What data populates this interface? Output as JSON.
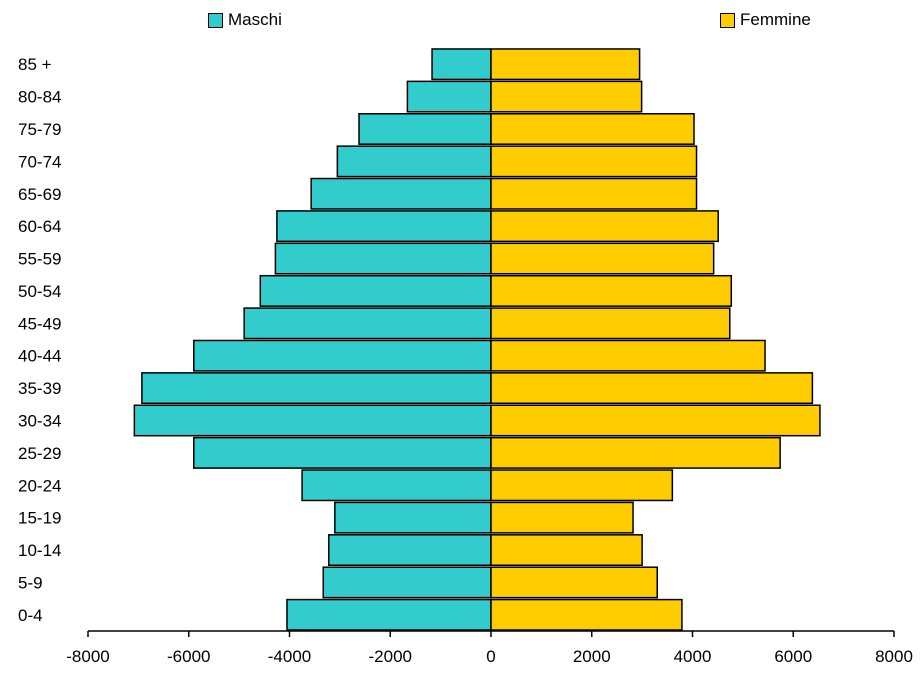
{
  "chart_data": {
    "type": "bar",
    "orientation": "horizontal",
    "categories": [
      "0-4",
      "5-9",
      "10-14",
      "15-19",
      "20-24",
      "25-29",
      "30-34",
      "35-39",
      "40-44",
      "45-49",
      "50-54",
      "55-59",
      "60-64",
      "65-69",
      "70-74",
      "75-79",
      "80-84",
      "85 +"
    ],
    "series": [
      {
        "name": "Maschi",
        "color": "#33cccc",
        "values": [
          -4050,
          -3330,
          -3220,
          -3100,
          -3750,
          -5900,
          -7080,
          -6930,
          -5900,
          -4900,
          -4580,
          -4280,
          -4250,
          -3570,
          -3050,
          -2620,
          -1660,
          -1170
        ]
      },
      {
        "name": "Femmine",
        "color": "#ffcc00",
        "values": [
          3790,
          3300,
          3000,
          2820,
          3600,
          5740,
          6530,
          6380,
          5440,
          4740,
          4770,
          4420,
          4510,
          4080,
          4080,
          4030,
          2990,
          2950
        ]
      }
    ],
    "xlim": [
      -8000,
      8000
    ],
    "xticks": [
      "-8000",
      "-6000",
      "-4000",
      "-2000",
      "0",
      "2000",
      "4000",
      "6000",
      "8000"
    ],
    "legend_position": "top",
    "grid": false
  }
}
